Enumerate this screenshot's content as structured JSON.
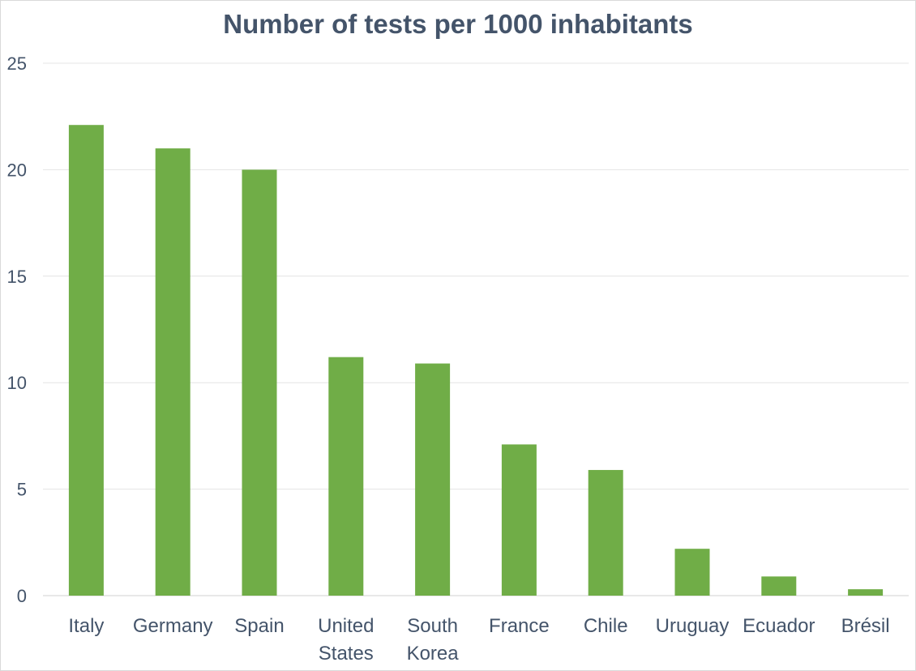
{
  "chart_data": {
    "type": "bar",
    "title": "Number of tests per 1000 inhabitants",
    "categories": [
      "Italy",
      "Germany",
      "Spain",
      "United States",
      "South Korea",
      "France",
      "Chile",
      "Uruguay",
      "Ecuador",
      "Brésil"
    ],
    "category_lines": [
      [
        "Italy"
      ],
      [
        "Germany"
      ],
      [
        "Spain"
      ],
      [
        "United",
        "States"
      ],
      [
        "South",
        "Korea"
      ],
      [
        "France"
      ],
      [
        "Chile"
      ],
      [
        "Uruguay"
      ],
      [
        "Ecuador"
      ],
      [
        "Brésil"
      ]
    ],
    "values": [
      22.1,
      21.0,
      20.0,
      11.2,
      10.9,
      7.1,
      5.9,
      2.2,
      0.9,
      0.3
    ],
    "y_ticks": [
      "0",
      "5",
      "10",
      "15",
      "20",
      "25"
    ],
    "ylim": [
      0,
      25
    ],
    "grid": true,
    "legend": "none",
    "bar_color": "#70ad47",
    "grid_color": "#e4e4e4",
    "text_color": "#44546a"
  }
}
